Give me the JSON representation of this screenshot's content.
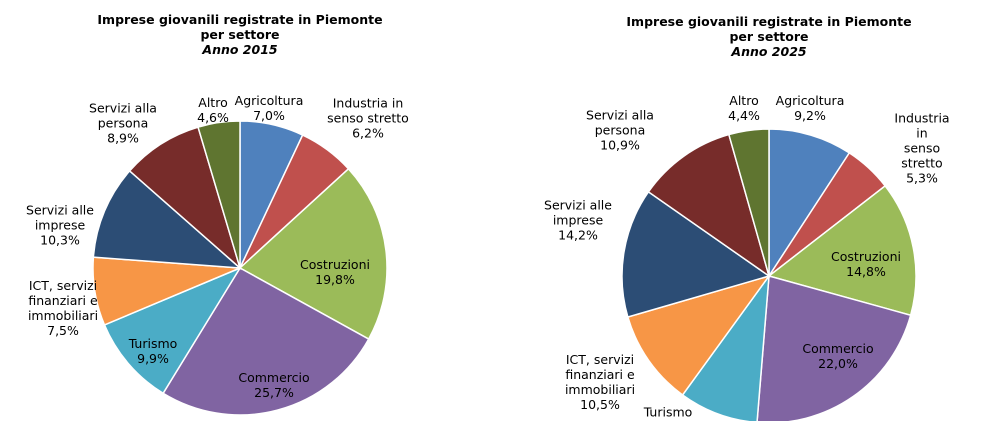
{
  "chart_data": [
    {
      "type": "pie",
      "title": "Imprese giovanili registrate in Piemonte\nper settore",
      "subtitle": "Anno 2015",
      "categories": [
        "Agricoltura",
        "Industria in\nsenso stretto",
        "Costruzioni",
        "Commercio",
        "Turismo",
        "ICT, servizi\nfinanziari e\nimmobiliari",
        "Servizi alle\nimprese",
        "Servizi alla\npersona",
        "Altro"
      ],
      "values": [
        7.0,
        6.2,
        19.8,
        25.7,
        9.9,
        7.5,
        10.3,
        8.9,
        4.6
      ],
      "value_labels": [
        "7,0%",
        "6,2%",
        "19,8%",
        "25,7%",
        "9,9%",
        "7,5%",
        "10,3%",
        "8,9%",
        "4,6%"
      ],
      "colors": [
        "#4f81bd",
        "#c0504d",
        "#9bbb59",
        "#8064a2",
        "#4bacc6",
        "#f79646",
        "#2c4d75",
        "#772c2a",
        "#5f7530"
      ]
    },
    {
      "type": "pie",
      "title": "Imprese giovanili registrate in Piemonte\nper settore",
      "subtitle": "Anno 2025",
      "categories": [
        "Agricoltura",
        "Industria in\nsenso stretto",
        "Costruzioni",
        "Commercio",
        "Turismo",
        "ICT, servizi\nfinanziari e\nimmobiliari",
        "Servizi alle\nimprese",
        "Servizi alla\npersona",
        "Altro"
      ],
      "values": [
        9.2,
        5.3,
        14.8,
        22.0,
        8.7,
        10.5,
        14.2,
        10.9,
        4.4
      ],
      "value_labels": [
        "9,2%",
        "5,3%",
        "14,8%",
        "22,0%",
        null,
        "10,5%",
        "14,2%",
        "10,9%",
        "4,4%"
      ],
      "colors": [
        "#4f81bd",
        "#c0504d",
        "#9bbb59",
        "#8064a2",
        "#4bacc6",
        "#f79646",
        "#2c4d75",
        "#772c2a",
        "#5f7530"
      ]
    }
  ]
}
